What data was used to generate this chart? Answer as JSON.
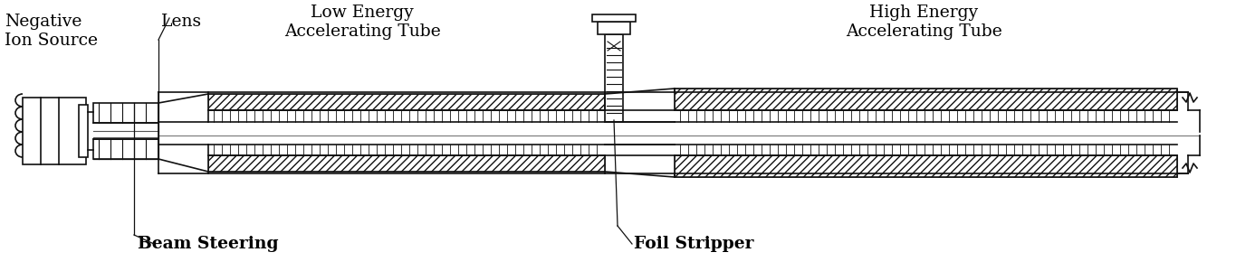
{
  "bg": "#ffffff",
  "lc": "#111111",
  "fig_w": 13.65,
  "fig_h": 3.0,
  "dpi": 100,
  "labels": {
    "neg_ion": "Negative\nIon Source",
    "lens": "Lens",
    "low_energy": "Low Energy\nAccelerating Tube",
    "high_energy": "High Energy\nAccelerating Tube",
    "beam_steering": "Beam Steering",
    "foil_stripper": "Foil Stripper"
  }
}
